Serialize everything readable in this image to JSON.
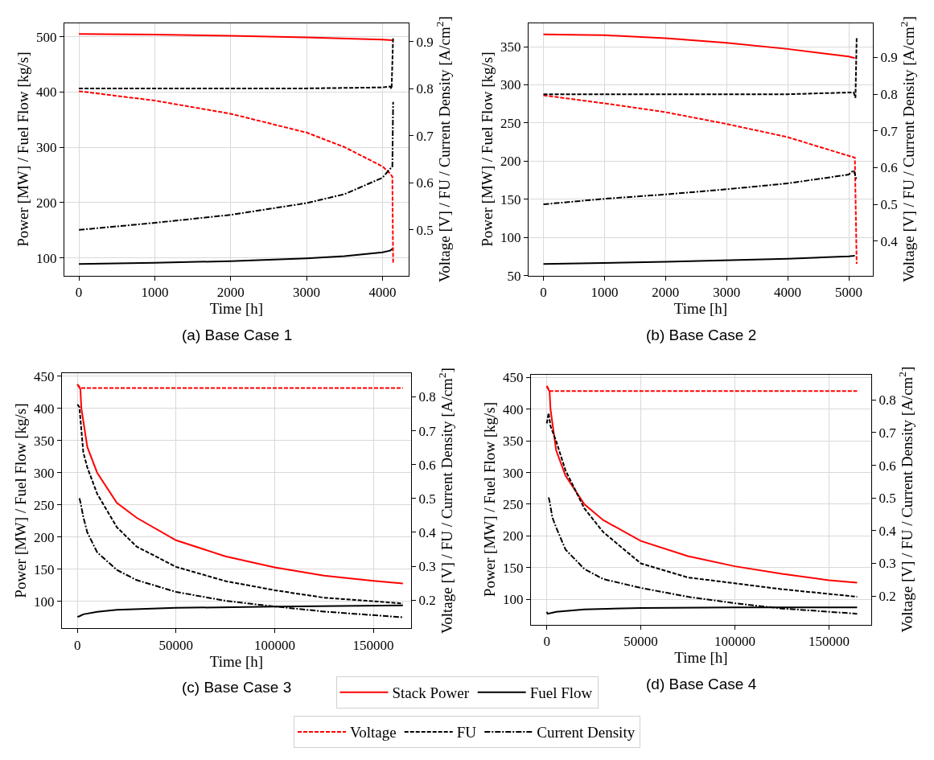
{
  "chart_data": [
    {
      "type": "line",
      "title": "(a) Base Case 1",
      "xlabel": "Time [h]",
      "ylabel": "Power [MW] / Fuel Flow [kg/s]",
      "y2label": "Voltage [V] / FU / Current Density [A/cm$^{2}$]",
      "xlim": [
        -192,
        4345
      ],
      "xticks": [
        0,
        1000,
        2000,
        3000,
        4000
      ],
      "ylim": [
        68,
        525
      ],
      "yticks": [
        100,
        200,
        300,
        400,
        500
      ],
      "y2lim": [
        0.403,
        0.94
      ],
      "y2ticks": [
        0.5,
        0.6,
        0.7,
        0.8,
        0.9
      ],
      "grid": true,
      "legend": "bottom",
      "series": [
        {
          "name": "Stack Power",
          "color": "#ff0000",
          "line_style": "solid",
          "x": [
            0,
            1000,
            2000,
            3000,
            4000,
            4130
          ],
          "values": [
            505,
            504,
            502,
            499,
            495,
            494
          ]
        },
        {
          "name": "Fuel Flow",
          "color": "#000000",
          "line_style": "solid",
          "x": [
            0,
            1000,
            2000,
            3000,
            3500,
            4000,
            4100,
            4140
          ],
          "values": [
            89,
            91,
            94,
            99,
            103,
            110,
            113,
            117
          ]
        },
        {
          "name": "Voltage",
          "color": "#ff0000",
          "line_style": "dashed",
          "axis": "y2",
          "x": [
            0,
            1000,
            2000,
            3000,
            3500,
            4000,
            4100,
            4130,
            4140
          ],
          "values": [
            0.795,
            0.775,
            0.747,
            0.707,
            0.676,
            0.635,
            0.62,
            0.613,
            0.43
          ]
        },
        {
          "name": "FU",
          "color": "#000000",
          "line_style": "dashed",
          "axis": "y2",
          "x": [
            0,
            1000,
            2000,
            3000,
            4000,
            4100,
            4120,
            4140
          ],
          "values": [
            0.801,
            0.801,
            0.801,
            0.801,
            0.803,
            0.805,
            0.8,
            0.91
          ]
        },
        {
          "name": "Current Density",
          "color": "#000000",
          "line_style": "dashdot",
          "axis": "y2",
          "x": [
            0,
            1000,
            2000,
            3000,
            3500,
            4000,
            4100,
            4130,
            4140
          ],
          "values": [
            0.5,
            0.515,
            0.532,
            0.557,
            0.576,
            0.611,
            0.63,
            0.633,
            0.772
          ]
        }
      ]
    },
    {
      "type": "line",
      "title": "(b) Base Case 2",
      "xlabel": "Time [h]",
      "ylabel": "Power [MW] / Fuel Flow [kg/s]",
      "y2label": "Voltage [V] / FU / Current Density [A/cm$^{2}$]",
      "xlim": [
        -244,
        5395
      ],
      "xticks": [
        0,
        1000,
        2000,
        3000,
        4000,
        5000
      ],
      "ylim": [
        50,
        381
      ],
      "yticks": [
        50,
        100,
        150,
        200,
        250,
        300,
        350
      ],
      "y2lim": [
        0.306,
        0.994
      ],
      "y2ticks": [
        0.4,
        0.5,
        0.6,
        0.7,
        0.8,
        0.9
      ],
      "grid": true,
      "series": [
        {
          "color": "#ff0000",
          "line_style": "solid",
          "x": [
            0,
            1000,
            2000,
            3000,
            4000,
            5000,
            5100
          ],
          "values": [
            366,
            365,
            361,
            355,
            347,
            337,
            335
          ]
        },
        {
          "color": "#000000",
          "line_style": "solid",
          "x": [
            0,
            2000,
            4000,
            5000,
            5100
          ],
          "values": [
            65,
            68,
            72,
            75,
            76
          ]
        },
        {
          "color": "#ff0000",
          "line_style": "dashed",
          "axis": "y2",
          "x": [
            0,
            1000,
            2000,
            3000,
            4000,
            5000,
            5100,
            5130
          ],
          "values": [
            0.797,
            0.775,
            0.751,
            0.719,
            0.683,
            0.632,
            0.627,
            0.338
          ]
        },
        {
          "color": "#000000",
          "line_style": "dashed",
          "axis": "y2",
          "x": [
            0,
            1000,
            2000,
            3000,
            4000,
            5080,
            5110,
            5130
          ],
          "values": [
            0.8,
            0.8,
            0.8,
            0.8,
            0.8,
            0.805,
            0.79,
            0.955
          ]
        },
        {
          "color": "#000000",
          "line_style": "dashdot",
          "axis": "y2",
          "x": [
            0,
            1000,
            2000,
            3000,
            4000,
            5000,
            5080,
            5130
          ],
          "values": [
            0.5,
            0.515,
            0.527,
            0.541,
            0.557,
            0.581,
            0.593,
            0.566
          ]
        }
      ]
    },
    {
      "type": "line",
      "title": "(c) Base Case 3",
      "xlabel": "Time [h]",
      "ylabel": "Power [MW] / Fuel Flow [kg/s]",
      "y2label": "Voltage [V] / FU / Current Density [A/cm$^{2}$]",
      "xlim": [
        -7840,
        169150
      ],
      "xticks": [
        0,
        50000,
        100000,
        150000
      ],
      "ylim": [
        58,
        455
      ],
      "yticks": [
        100,
        150,
        200,
        250,
        300,
        350,
        400,
        450
      ],
      "y2lim": [
        0.116,
        0.871
      ],
      "y2ticks": [
        0.2,
        0.3,
        0.4,
        0.5,
        0.6,
        0.7,
        0.8
      ],
      "grid": true,
      "series": [
        {
          "color": "#ff0000",
          "line_style": "solid",
          "x": [
            0,
            1500,
            2000,
            5000,
            10000,
            20000,
            30000,
            50000,
            75000,
            100000,
            125000,
            150000,
            165000
          ],
          "values": [
            437,
            430,
            400,
            340,
            300,
            253,
            230,
            195,
            170,
            153,
            140,
            132,
            128
          ]
        },
        {
          "color": "#000000",
          "line_style": "solid",
          "x": [
            0,
            1000,
            3000,
            10000,
            20000,
            50000,
            100000,
            165000
          ],
          "values": [
            76,
            77,
            80,
            84,
            87,
            90,
            92,
            94
          ]
        },
        {
          "color": "#ff0000",
          "line_style": "dashed",
          "axis": "y2",
          "x": [
            0,
            1500,
            50000,
            100000,
            165000
          ],
          "values": [
            0.837,
            0.826,
            0.826,
            0.826,
            0.826
          ]
        },
        {
          "color": "#000000",
          "line_style": "dashed",
          "axis": "y2",
          "x": [
            0,
            1000,
            3000,
            5000,
            10000,
            20000,
            30000,
            50000,
            75000,
            100000,
            125000,
            165000
          ],
          "values": [
            0.778,
            0.77,
            0.636,
            0.592,
            0.514,
            0.415,
            0.358,
            0.298,
            0.256,
            0.229,
            0.207,
            0.19
          ]
        },
        {
          "color": "#000000",
          "line_style": "dashdot",
          "axis": "y2",
          "x": [
            1000,
            1500,
            3000,
            5000,
            10000,
            20000,
            30000,
            50000,
            75000,
            100000,
            125000,
            165000
          ],
          "values": [
            0.501,
            0.49,
            0.445,
            0.4,
            0.341,
            0.289,
            0.259,
            0.224,
            0.198,
            0.181,
            0.166,
            0.149
          ]
        }
      ]
    },
    {
      "type": "line",
      "title": "(d) Base Case 4",
      "xlabel": "Time [h]",
      "ylabel": "Power [MW] / Fuel Flow [kg/s]",
      "y2label": "Voltage [V] / FU / Current Density [A/cm$^{2}$]",
      "xlim": [
        -8400,
        172500
      ],
      "xticks": [
        0,
        50000,
        100000,
        150000
      ],
      "ylim": [
        60,
        455
      ],
      "yticks": [
        100,
        150,
        200,
        250,
        300,
        350,
        400,
        450
      ],
      "y2lim": [
        0.113,
        0.878
      ],
      "y2ticks": [
        0.2,
        0.3,
        0.4,
        0.5,
        0.6,
        0.7,
        0.8
      ],
      "grid": true,
      "series": [
        {
          "color": "#ff0000",
          "line_style": "solid",
          "x": [
            0,
            1500,
            2000,
            5000,
            10000,
            20000,
            30000,
            50000,
            75000,
            100000,
            125000,
            150000,
            165000
          ],
          "values": [
            436,
            428,
            400,
            335,
            295,
            250,
            225,
            192,
            168,
            152,
            140,
            130,
            126
          ]
        },
        {
          "color": "#000000",
          "line_style": "solid",
          "x": [
            0,
            500,
            5000,
            20000,
            50000,
            100000,
            165000
          ],
          "values": [
            80,
            77,
            80,
            84,
            86,
            87,
            87
          ]
        },
        {
          "color": "#ff0000",
          "line_style": "dashed",
          "axis": "y2",
          "x": [
            0,
            1500,
            50000,
            100000,
            165000
          ],
          "values": [
            0.843,
            0.827,
            0.827,
            0.827,
            0.827
          ]
        },
        {
          "color": "#000000",
          "line_style": "dashed",
          "axis": "y2",
          "x": [
            0,
            1000,
            2000,
            5000,
            10000,
            20000,
            30000,
            50000,
            75000,
            100000,
            125000,
            165000
          ],
          "values": [
            0.728,
            0.76,
            0.72,
            0.674,
            0.584,
            0.468,
            0.396,
            0.3,
            0.257,
            0.239,
            0.221,
            0.198
          ]
        },
        {
          "color": "#000000",
          "line_style": "dashdot",
          "axis": "y2",
          "x": [
            1000,
            1500,
            3000,
            5000,
            10000,
            20000,
            30000,
            50000,
            75000,
            100000,
            125000,
            165000
          ],
          "values": [
            0.502,
            0.49,
            0.44,
            0.41,
            0.342,
            0.283,
            0.252,
            0.225,
            0.198,
            0.178,
            0.162,
            0.146
          ]
        }
      ]
    }
  ]
}
